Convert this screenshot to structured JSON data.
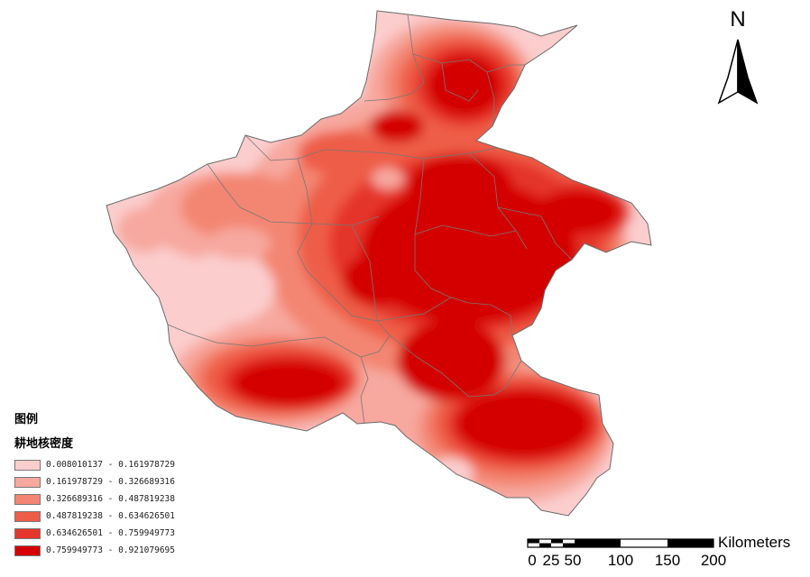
{
  "legend": {
    "title": "图例",
    "subtitle": "耕地核密度",
    "classes": [
      {
        "label": "0.008010137 - 0.161978729",
        "color": "#fbcdcd"
      },
      {
        "label": "0.161978729 - 0.326689316",
        "color": "#f7a89f"
      },
      {
        "label": "0.326689316 - 0.487819238",
        "color": "#f38672"
      },
      {
        "label": "0.487819238 - 0.634626501",
        "color": "#ee5d47"
      },
      {
        "label": "0.634626501 - 0.759949773",
        "color": "#e5362b"
      },
      {
        "label": "0.759949773 - 0.921079695",
        "color": "#d40000"
      }
    ]
  },
  "north_arrow": {
    "letter": "N"
  },
  "scale_bar": {
    "unit": "Kilometers",
    "ticks": [
      "0",
      "25",
      "50",
      "100",
      "150",
      "200"
    ]
  }
}
